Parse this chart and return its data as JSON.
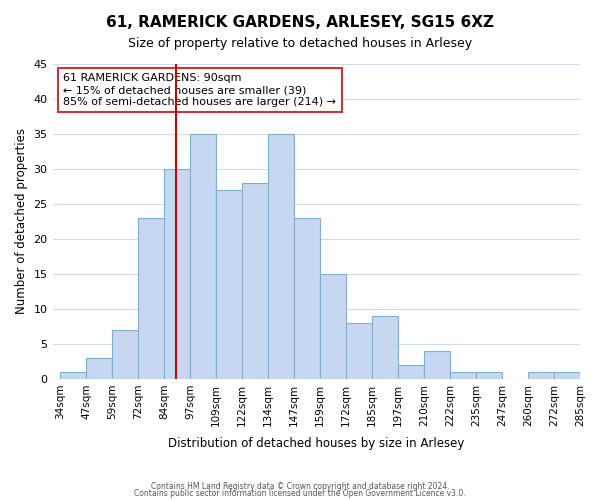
{
  "title": "61, RAMERICK GARDENS, ARLESEY, SG15 6XZ",
  "subtitle": "Size of property relative to detached houses in Arlesey",
  "xlabel": "Distribution of detached houses by size in Arlesey",
  "ylabel": "Number of detached properties",
  "bar_labels": [
    "34sqm",
    "47sqm",
    "59sqm",
    "72sqm",
    "84sqm",
    "97sqm",
    "109sqm",
    "122sqm",
    "134sqm",
    "147sqm",
    "159sqm",
    "172sqm",
    "185sqm",
    "197sqm",
    "210sqm",
    "222sqm",
    "235sqm",
    "247sqm",
    "260sqm",
    "272sqm",
    "285sqm"
  ],
  "bar_values": [
    1,
    3,
    7,
    23,
    30,
    35,
    27,
    28,
    35,
    23,
    15,
    8,
    9,
    2,
    4,
    1,
    1,
    0,
    1,
    1
  ],
  "bar_color": "#c5d8f0",
  "bar_edge_color": "#7bafd4",
  "reference_line_color": "#cc0000",
  "annotation_text": "61 RAMERICK GARDENS: 90sqm\n← 15% of detached houses are smaller (39)\n85% of semi-detached houses are larger (214) →",
  "annotation_box_color": "#ffffff",
  "annotation_box_edge": "#cc3333",
  "ylim": [
    0,
    45
  ],
  "yticks": [
    0,
    5,
    10,
    15,
    20,
    25,
    30,
    35,
    40,
    45
  ],
  "footer_line1": "Contains HM Land Registry data © Crown copyright and database right 2024.",
  "footer_line2": "Contains public sector information licensed under the Open Government Licence v3.0.",
  "bg_color": "#ffffff",
  "grid_color": "#ccddee"
}
